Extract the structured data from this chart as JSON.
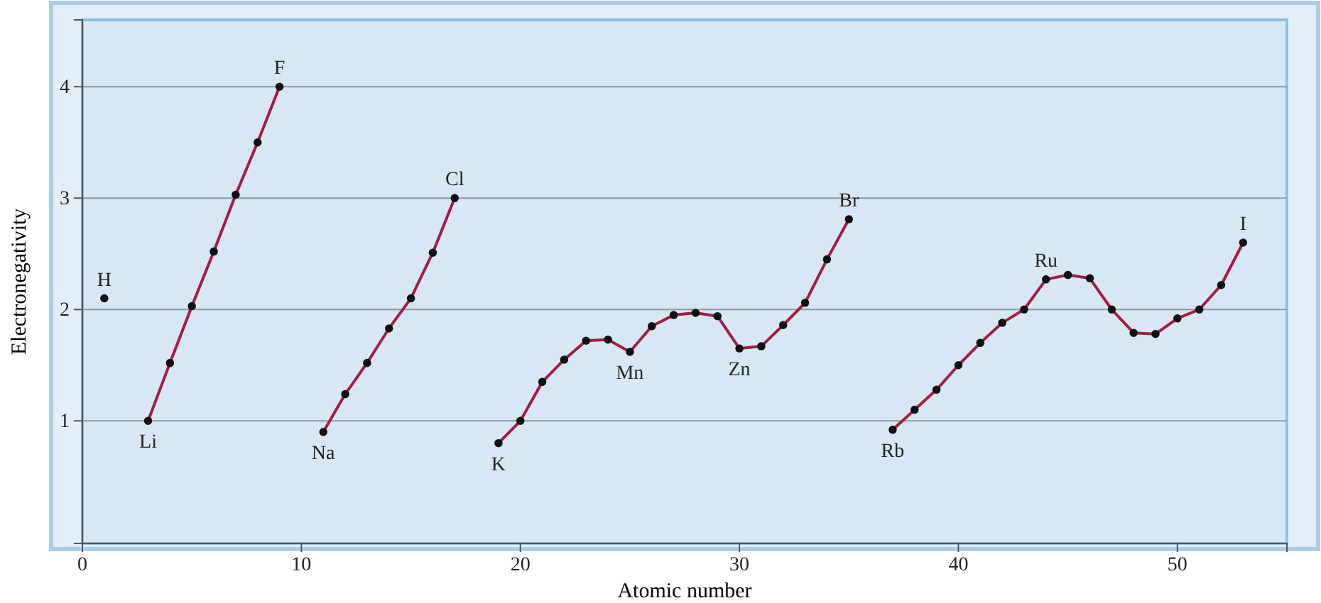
{
  "chart_data": {
    "type": "line",
    "xlabel": "Atomic number",
    "ylabel": "Electronegativity",
    "xlim": [
      0,
      55
    ],
    "ylim": [
      -0.1,
      4.6
    ],
    "xticks": [
      0,
      10,
      20,
      30,
      40,
      50
    ],
    "yticks": [
      1,
      2,
      3,
      4
    ],
    "grid": "y",
    "marker": "circle",
    "line_style": "solid",
    "series": [
      {
        "type": "scatter",
        "color": "#111111",
        "x": [
          1
        ],
        "values": [
          2.1
        ]
      },
      {
        "color": "#a31d3f",
        "x": [
          3,
          4,
          5,
          6,
          7,
          8,
          9
        ],
        "values": [
          1.0,
          1.52,
          2.03,
          2.52,
          3.03,
          3.5,
          4.0
        ]
      },
      {
        "color": "#a31d3f",
        "x": [
          11,
          12,
          13,
          14,
          15,
          16,
          17
        ],
        "values": [
          0.9,
          1.24,
          1.52,
          1.83,
          2.1,
          2.51,
          3.0
        ]
      },
      {
        "color": "#a31d3f",
        "x": [
          19,
          20,
          21,
          22,
          23,
          24,
          25,
          26,
          27,
          28,
          29,
          30,
          31,
          32,
          33,
          34,
          35
        ],
        "values": [
          0.8,
          1.0,
          1.35,
          1.55,
          1.72,
          1.73,
          1.62,
          1.85,
          1.95,
          1.97,
          1.94,
          1.65,
          1.67,
          1.86,
          2.06,
          2.45,
          2.81
        ]
      },
      {
        "color": "#a31d3f",
        "x": [
          37,
          38,
          39,
          40,
          41,
          42,
          43,
          44,
          45,
          46,
          47,
          48,
          49,
          50,
          51,
          52,
          53
        ],
        "values": [
          0.92,
          1.1,
          1.28,
          1.5,
          1.7,
          1.88,
          2.0,
          2.27,
          2.31,
          2.28,
          2.0,
          1.79,
          1.78,
          1.92,
          2.0,
          2.22,
          2.6
        ]
      }
    ],
    "annotations": [
      {
        "text": "H",
        "x": 1,
        "y": 2.1
      },
      {
        "text": "Li",
        "x": 3,
        "y": 1.0
      },
      {
        "text": "F",
        "x": 9,
        "y": 4.0
      },
      {
        "text": "Na",
        "x": 11,
        "y": 0.9
      },
      {
        "text": "Cl",
        "x": 17,
        "y": 3.0
      },
      {
        "text": "K",
        "x": 19,
        "y": 0.8
      },
      {
        "text": "Mn",
        "x": 25,
        "y": 1.62
      },
      {
        "text": "Zn",
        "x": 30,
        "y": 1.65
      },
      {
        "text": "Br",
        "x": 35,
        "y": 2.81
      },
      {
        "text": "Rb",
        "x": 37,
        "y": 0.92
      },
      {
        "text": "Ru",
        "x": 44,
        "y": 2.27
      },
      {
        "text": "I",
        "x": 53,
        "y": 2.6
      }
    ]
  }
}
